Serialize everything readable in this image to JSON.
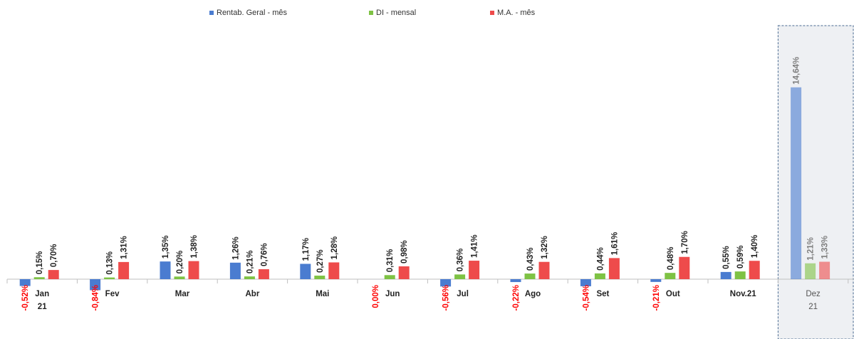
{
  "chart_data": {
    "type": "bar",
    "categories": [
      "Jan\n21",
      "Fev",
      "Mar",
      "Abr",
      "Mai",
      "Jun",
      "Jul",
      "Ago",
      "Set",
      "Out",
      "Nov.21",
      "Dez\n21"
    ],
    "series": [
      {
        "name": "Rentab. Geral - mês",
        "color": "#4a7cd0",
        "values": [
          -0.52,
          -0.84,
          1.35,
          1.26,
          1.17,
          0.0,
          -0.56,
          -0.22,
          -0.54,
          -0.21,
          0.55,
          14.64
        ],
        "labels": [
          "-0,52%",
          "-0,84%",
          "1,35%",
          "1,26%",
          "1,17%",
          "0,00%",
          "-0,56%",
          "-0,22%",
          "-0,54%",
          "-0,21%",
          "0,55%",
          "14,64%"
        ]
      },
      {
        "name": "DI - mensal",
        "color": "#7ec244",
        "values": [
          0.15,
          0.13,
          0.2,
          0.21,
          0.27,
          0.31,
          0.36,
          0.43,
          0.44,
          0.48,
          0.59,
          1.21
        ],
        "labels": [
          "0,15%",
          "0,13%",
          "0,20%",
          "0,21%",
          "0,27%",
          "0,31%",
          "0,36%",
          "0,43%",
          "0,44%",
          "0,48%",
          "0,59%",
          "1,21%"
        ]
      },
      {
        "name": "M.A. - mês",
        "color": "#ee4b4b",
        "values": [
          0.7,
          1.31,
          1.38,
          0.76,
          1.28,
          0.98,
          1.41,
          1.32,
          1.61,
          1.7,
          1.4,
          1.33
        ],
        "labels": [
          "0,70%",
          "1,31%",
          "1,38%",
          "0,76%",
          "1,28%",
          "0,98%",
          "1,41%",
          "1,32%",
          "1,61%",
          "1,70%",
          "1,40%",
          "1,33%"
        ]
      }
    ],
    "highlighted_category": "Dez\n21",
    "legend_position": "top-center",
    "negative_label_color": "#ff0000",
    "grid": false
  }
}
